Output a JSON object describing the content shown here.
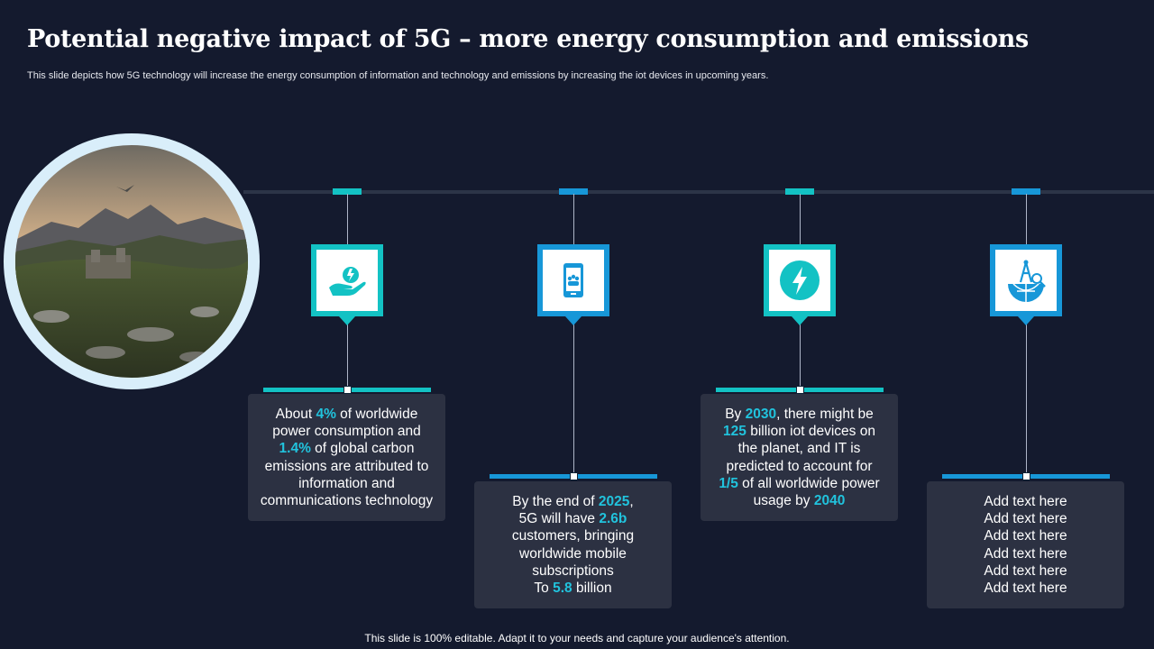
{
  "header": {
    "title": "Potential negative impact of 5G – more energy consumption and emissions",
    "subtitle": "This slide depicts how 5G technology will increase the energy consumption of information and technology and emissions by increasing the iot devices in upcoming years."
  },
  "colors": {
    "background": "#141a2e",
    "teal": "#13c2c4",
    "blue": "#1797d8",
    "highlight": "#21c3dd",
    "card": "#2c3142"
  },
  "steps": [
    {
      "icon": "hand-energy-icon",
      "accent": "#13c2c4",
      "text": [
        [
          {
            "t": "About "
          },
          {
            "t": "4%",
            "hl": true
          },
          {
            "t": " of worldwide"
          }
        ],
        [
          {
            "t": "power consumption and"
          }
        ],
        [
          {
            "t": "1.4%",
            "hl": true
          },
          {
            "t": " of global carbon"
          }
        ],
        [
          {
            "t": "emissions are attributed to"
          }
        ],
        [
          {
            "t": "information and"
          }
        ],
        [
          {
            "t": "communications technology"
          }
        ]
      ]
    },
    {
      "icon": "mobile-users-icon",
      "accent": "#1797d8",
      "text": [
        [
          {
            "t": "By the end of "
          },
          {
            "t": "2025",
            "hl": true
          },
          {
            "t": ","
          }
        ],
        [
          {
            "t": "5G will have "
          },
          {
            "t": "2.6b",
            "hl": true
          }
        ],
        [
          {
            "t": "customers, bringing"
          }
        ],
        [
          {
            "t": "worldwide mobile"
          }
        ],
        [
          {
            "t": "subscriptions"
          }
        ],
        [
          {
            "t": "To "
          },
          {
            "t": "5.8",
            "hl": true
          },
          {
            "t": " billion"
          }
        ]
      ]
    },
    {
      "icon": "lightning-bolt-icon",
      "accent": "#13c2c4",
      "text": [
        [
          {
            "t": "By "
          },
          {
            "t": "2030",
            "hl": true
          },
          {
            "t": ", there might be"
          }
        ],
        [
          {
            "t": "125",
            "hl": true
          },
          {
            "t": " billion iot devices on"
          }
        ],
        [
          {
            "t": "the planet, and IT is"
          }
        ],
        [
          {
            "t": "predicted to account for"
          }
        ],
        [
          {
            "t": "1/5",
            "hl": true
          },
          {
            "t": " of all worldwide power"
          }
        ],
        [
          {
            "t": "usage by "
          },
          {
            "t": "2040",
            "hl": true
          }
        ]
      ]
    },
    {
      "icon": "globe-network-icon",
      "accent": "#1797d8",
      "text": [
        [
          {
            "t": "Add text here"
          }
        ],
        [
          {
            "t": "Add text here"
          }
        ],
        [
          {
            "t": "Add text here"
          }
        ],
        [
          {
            "t": "Add text here"
          }
        ],
        [
          {
            "t": "Add text here"
          }
        ],
        [
          {
            "t": "Add text here"
          }
        ]
      ]
    }
  ],
  "photo": {
    "icon": "landscape-photo"
  },
  "footer": {
    "text": "This slide is 100% editable. Adapt it to your needs and capture your audience's attention."
  }
}
